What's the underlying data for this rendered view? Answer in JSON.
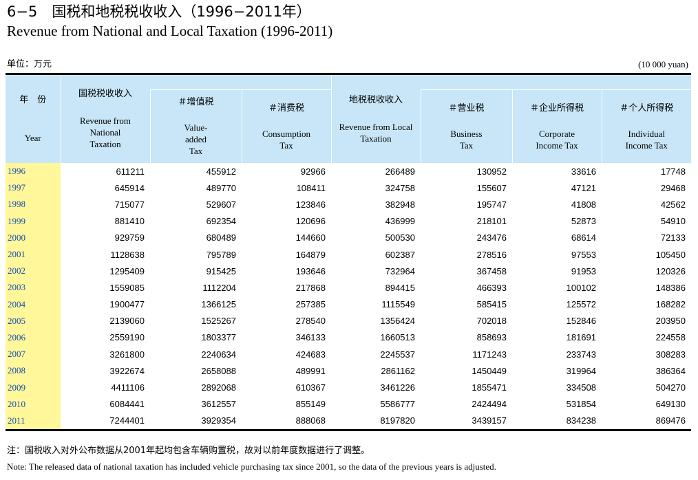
{
  "title": {
    "zh": "6−5　国税和地税税收收入（1996−2011年）",
    "en": "Revenue from National and Local Taxation (1996-2011)"
  },
  "unit": {
    "zh": "单位：万元",
    "en": "(10 000 yuan)"
  },
  "header": {
    "year_zh": "年　份",
    "year_en": "Year",
    "national_zh": "国税税收收入",
    "national_en": "Revenue from National Taxation",
    "vat_zh": "＃增值税",
    "vat_en": "Value-added Tax",
    "consumption_zh": "＃消费税",
    "consumption_en": "Consumption Tax",
    "local_zh": "地税税收收入",
    "local_en": "Revenue from Local Taxation",
    "business_zh": "＃营业税",
    "business_en": "Business Tax",
    "corporate_zh": "＃企业所得税",
    "corporate_en": "Corporate Income Tax",
    "individual_zh": "＃个人所得税",
    "individual_en": "Individual Income Tax"
  },
  "rows": [
    [
      "1996",
      "611211",
      "455912",
      "92966",
      "266489",
      "130952",
      "33616",
      "17748"
    ],
    [
      "1997",
      "645914",
      "489770",
      "108411",
      "324758",
      "155607",
      "47121",
      "29468"
    ],
    [
      "1998",
      "715077",
      "529607",
      "123846",
      "382948",
      "195747",
      "41808",
      "42562"
    ],
    [
      "1999",
      "881410",
      "692354",
      "120696",
      "436999",
      "218101",
      "52873",
      "54910"
    ],
    [
      "2000",
      "929759",
      "680489",
      "144660",
      "500530",
      "243476",
      "68614",
      "72133"
    ],
    [
      "2001",
      "1128638",
      "795789",
      "164879",
      "602387",
      "278516",
      "97553",
      "105450"
    ],
    [
      "2002",
      "1295409",
      "915425",
      "193646",
      "732964",
      "367458",
      "91953",
      "120326"
    ],
    [
      "2003",
      "1559085",
      "1112204",
      "217868",
      "894415",
      "466393",
      "100102",
      "148386"
    ],
    [
      "2004",
      "1900477",
      "1366125",
      "257385",
      "1115549",
      "585415",
      "125572",
      "168282"
    ],
    [
      "2005",
      "2139060",
      "1525267",
      "278540",
      "1356424",
      "702018",
      "152846",
      "203950"
    ],
    [
      "2006",
      "2559190",
      "1803377",
      "346133",
      "1660513",
      "858693",
      "181691",
      "224558"
    ],
    [
      "2007",
      "3261800",
      "2240634",
      "424683",
      "2245537",
      "1171243",
      "233743",
      "308283"
    ],
    [
      "2008",
      "3922674",
      "2658088",
      "489991",
      "2861162",
      "1450449",
      "319964",
      "386364"
    ],
    [
      "2009",
      "4411106",
      "2892068",
      "610367",
      "3461226",
      "1855471",
      "334508",
      "504270"
    ],
    [
      "2010",
      "6084441",
      "3612557",
      "855149",
      "5586777",
      "2424494",
      "531854",
      "649130"
    ],
    [
      "2011",
      "7244401",
      "3929354",
      "888068",
      "8197820",
      "3439157",
      "834238",
      "869476"
    ]
  ],
  "note": {
    "zh": "注：国税收入对外公布数据从2001年起均包含车辆购置税，故对以前年度数据进行了调整。",
    "en": "Note: The released data of national taxation has included vehicle purchasing tax since 2001, so the data of the previous years is adjusted."
  }
}
